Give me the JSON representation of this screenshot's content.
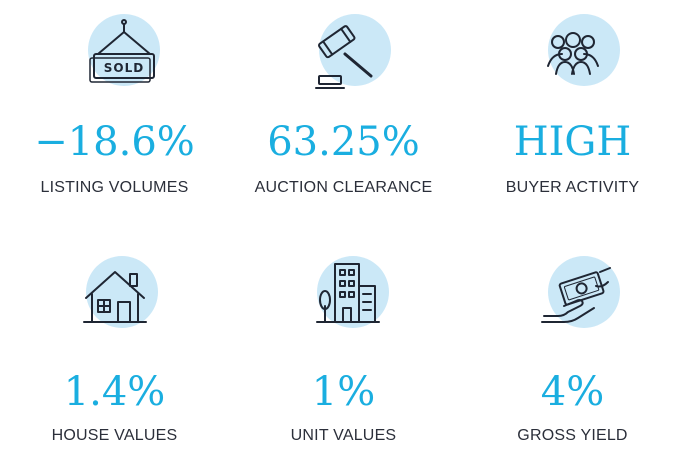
{
  "stats": [
    {
      "icon": "sold-sign-icon",
      "value": "−18.6%",
      "label": "LISTING VOLUMES"
    },
    {
      "icon": "auction-gavel-icon",
      "value": "63.25%",
      "label": "AUCTION CLEARANCE"
    },
    {
      "icon": "buyer-group-icon",
      "value": "HIGH",
      "label": "BUYER ACTIVITY"
    },
    {
      "icon": "house-icon",
      "value": "1.4%",
      "label": "HOUSE VALUES"
    },
    {
      "icon": "apartment-building-icon",
      "value": "1%",
      "label": "UNIT VALUES"
    },
    {
      "icon": "money-hand-icon",
      "value": "4%",
      "label": "GROSS YIELD"
    }
  ],
  "sign_text": "SOLD",
  "colors": {
    "accent": "#1aaee0",
    "icon_circle": "#cbe8f7",
    "label_text": "#2b2f3a",
    "icon_stroke": "#1f2633"
  }
}
